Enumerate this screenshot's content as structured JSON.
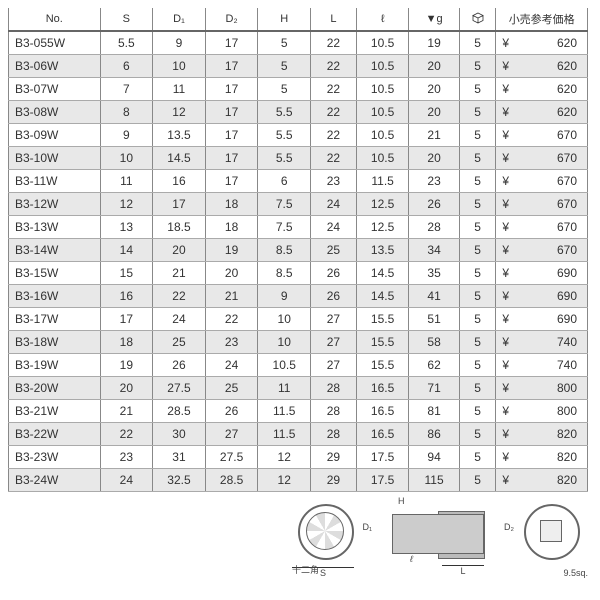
{
  "columns": [
    "No.",
    "S",
    "D₁",
    "D₂",
    "H",
    "L",
    "ℓ",
    "▼g",
    "□",
    "小売参考価格"
  ],
  "rows": [
    [
      "B3-055W",
      "5.5",
      "9",
      "17",
      "5",
      "22",
      "10.5",
      "19",
      "5",
      "620"
    ],
    [
      "B3-06W",
      "6",
      "10",
      "17",
      "5",
      "22",
      "10.5",
      "20",
      "5",
      "620"
    ],
    [
      "B3-07W",
      "7",
      "11",
      "17",
      "5",
      "22",
      "10.5",
      "20",
      "5",
      "620"
    ],
    [
      "B3-08W",
      "8",
      "12",
      "17",
      "5.5",
      "22",
      "10.5",
      "20",
      "5",
      "620"
    ],
    [
      "B3-09W",
      "9",
      "13.5",
      "17",
      "5.5",
      "22",
      "10.5",
      "21",
      "5",
      "670"
    ],
    [
      "B3-10W",
      "10",
      "14.5",
      "17",
      "5.5",
      "22",
      "10.5",
      "20",
      "5",
      "670"
    ],
    [
      "B3-11W",
      "11",
      "16",
      "17",
      "6",
      "23",
      "11.5",
      "23",
      "5",
      "670"
    ],
    [
      "B3-12W",
      "12",
      "17",
      "18",
      "7.5",
      "24",
      "12.5",
      "26",
      "5",
      "670"
    ],
    [
      "B3-13W",
      "13",
      "18.5",
      "18",
      "7.5",
      "24",
      "12.5",
      "28",
      "5",
      "670"
    ],
    [
      "B3-14W",
      "14",
      "20",
      "19",
      "8.5",
      "25",
      "13.5",
      "34",
      "5",
      "670"
    ],
    [
      "B3-15W",
      "15",
      "21",
      "20",
      "8.5",
      "26",
      "14.5",
      "35",
      "5",
      "690"
    ],
    [
      "B3-16W",
      "16",
      "22",
      "21",
      "9",
      "26",
      "14.5",
      "41",
      "5",
      "690"
    ],
    [
      "B3-17W",
      "17",
      "24",
      "22",
      "10",
      "27",
      "15.5",
      "51",
      "5",
      "690"
    ],
    [
      "B3-18W",
      "18",
      "25",
      "23",
      "10",
      "27",
      "15.5",
      "58",
      "5",
      "740"
    ],
    [
      "B3-19W",
      "19",
      "26",
      "24",
      "10.5",
      "27",
      "15.5",
      "62",
      "5",
      "740"
    ],
    [
      "B3-20W",
      "20",
      "27.5",
      "25",
      "11",
      "28",
      "16.5",
      "71",
      "5",
      "800"
    ],
    [
      "B3-21W",
      "21",
      "28.5",
      "26",
      "11.5",
      "28",
      "16.5",
      "81",
      "5",
      "800"
    ],
    [
      "B3-22W",
      "22",
      "30",
      "27",
      "11.5",
      "28",
      "16.5",
      "86",
      "5",
      "820"
    ],
    [
      "B3-23W",
      "23",
      "31",
      "27.5",
      "12",
      "29",
      "17.5",
      "94",
      "5",
      "820"
    ],
    [
      "B3-24W",
      "24",
      "32.5",
      "28.5",
      "12",
      "29",
      "17.5",
      "115",
      "5",
      "820"
    ]
  ],
  "currency": "¥",
  "diagram": {
    "label_s": "S",
    "label_d1": "D₁",
    "label_d2": "D₂",
    "label_h": "H",
    "label_l": "L",
    "label_l2": "ℓ",
    "label_12pt": "十二角",
    "label_drive": "9.5sq."
  }
}
